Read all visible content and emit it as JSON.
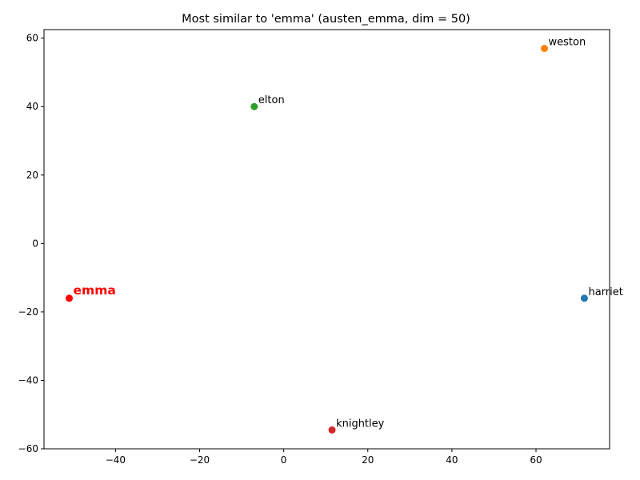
{
  "chart_data": {
    "type": "scatter",
    "title": "Most similar to 'emma' (austen_emma, dim = 50)",
    "xlabel": "",
    "ylabel": "",
    "xlim": [
      -57,
      77.5
    ],
    "ylim": [
      -60,
      62.5
    ],
    "xticks": [
      -40,
      -20,
      0,
      20,
      40,
      60
    ],
    "yticks": [
      -60,
      -40,
      -20,
      0,
      20,
      40,
      60
    ],
    "xtick_labels": [
      "−40",
      "−20",
      "0",
      "20",
      "40",
      "60"
    ],
    "ytick_labels": [
      "−60",
      "−40",
      "−20",
      "0",
      "20",
      "40",
      "60"
    ],
    "grid": false,
    "points": [
      {
        "label": "emma",
        "x": -51,
        "y": -16,
        "color": "#ff0000",
        "highlight": true
      },
      {
        "label": "harriet",
        "x": 71.5,
        "y": -16,
        "color": "#1f77b4",
        "highlight": false
      },
      {
        "label": "weston",
        "x": 62,
        "y": 57,
        "color": "#ff7f0e",
        "highlight": false
      },
      {
        "label": "elton",
        "x": -7,
        "y": 40,
        "color": "#2ca02c",
        "highlight": false
      },
      {
        "label": "knightley",
        "x": 11.5,
        "y": -54.5,
        "color": "#d62728",
        "highlight": false
      }
    ]
  }
}
